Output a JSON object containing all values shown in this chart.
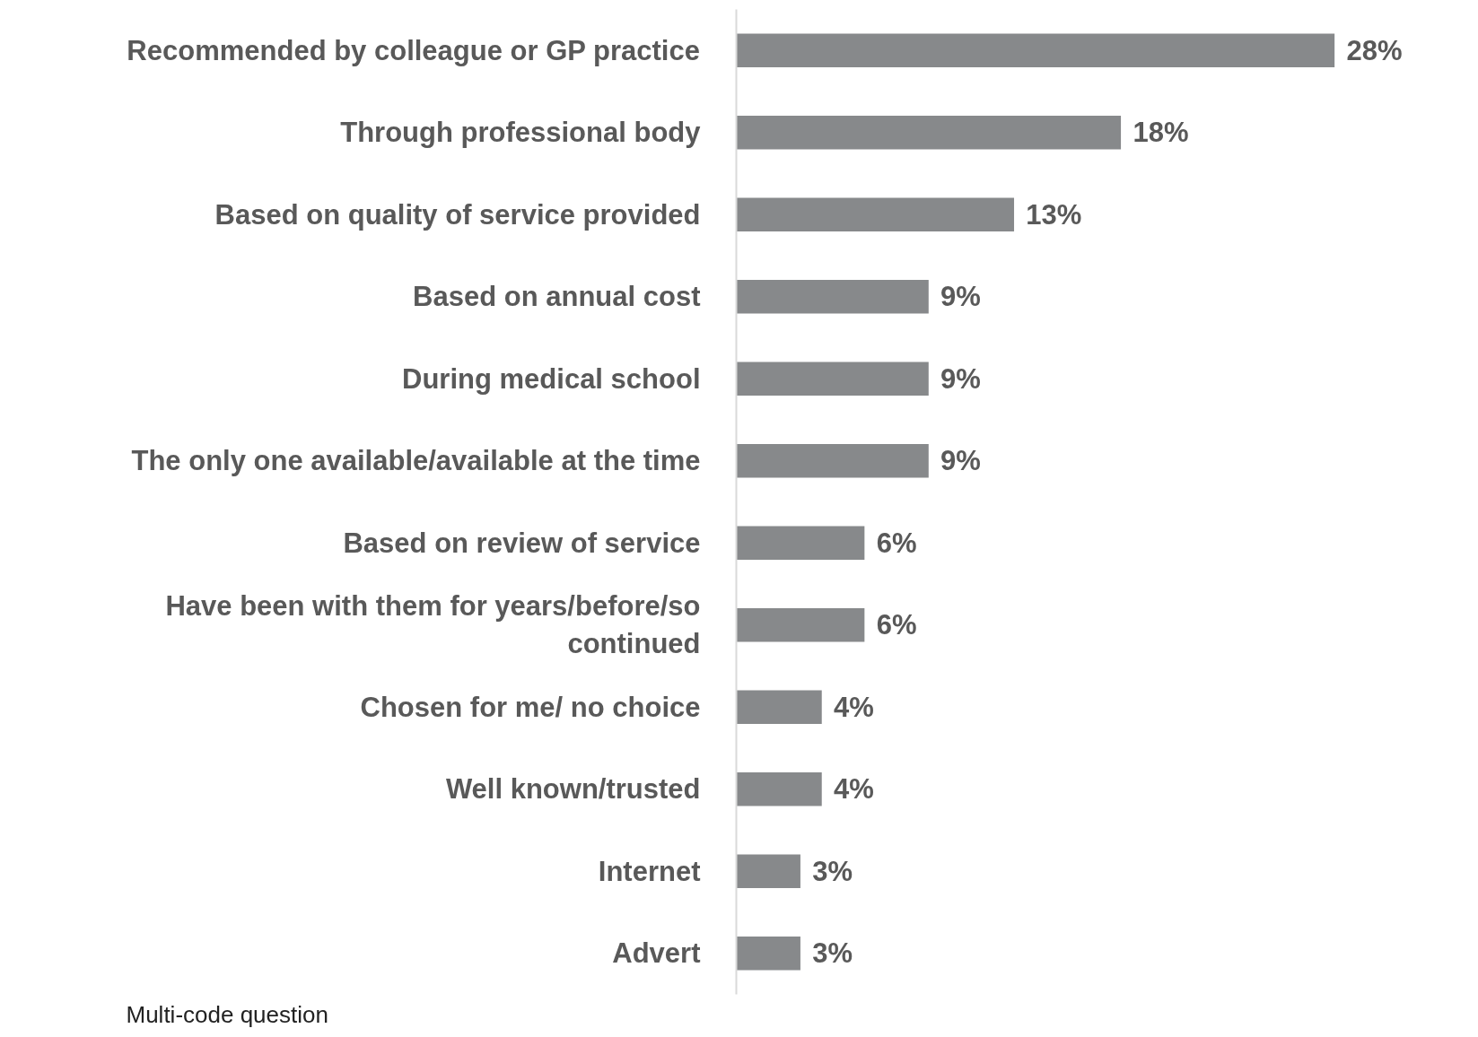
{
  "chart_data": {
    "type": "bar",
    "orientation": "horizontal",
    "categories": [
      "Recommended by colleague or GP practice",
      "Through professional body",
      "Based on quality of service provided",
      "Based on annual cost",
      "During medical school",
      "The only one available/available at the time",
      "Based on review of service",
      "Have been with them for years/before/so continued",
      "Chosen for me/ no choice",
      "Well known/trusted",
      "Internet",
      "Advert"
    ],
    "values": [
      28,
      18,
      13,
      9,
      9,
      9,
      6,
      6,
      4,
      4,
      3,
      3
    ],
    "value_labels": [
      "28%",
      "18%",
      "13%",
      "9%",
      "9%",
      "9%",
      "6%",
      "6%",
      "4%",
      "4%",
      "3%",
      "3%"
    ],
    "color": "#87898b",
    "grid": false,
    "annotations": [
      "Multi-code question"
    ]
  }
}
